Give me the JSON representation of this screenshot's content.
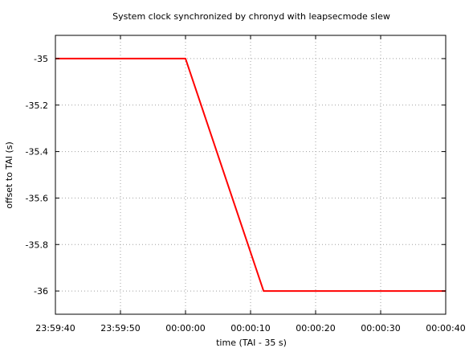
{
  "chart_data": {
    "type": "line",
    "title": "System clock synchronized by chronyd with leapsecmode slew",
    "xlabel": "time (TAI - 35 s)",
    "ylabel": "offset to TAI (s)",
    "xlim": [
      "23:59:40",
      "00:00:40"
    ],
    "ylim": [
      -36.1,
      -34.9
    ],
    "x_ticks": [
      "23:59:40",
      "23:59:50",
      "00:00:00",
      "00:00:10",
      "00:00:20",
      "00:00:30",
      "00:00:40"
    ],
    "y_ticks": [
      "-35",
      "-35.2",
      "-35.4",
      "-35.6",
      "-35.8",
      "-36"
    ],
    "grid": true,
    "legend": "none",
    "series": [
      {
        "color": "#ff0000",
        "points": [
          {
            "x": "23:59:40",
            "y": -35
          },
          {
            "x": "00:00:00",
            "y": -35
          },
          {
            "x": "00:00:12",
            "y": -36
          },
          {
            "x": "00:00:40",
            "y": -36
          }
        ]
      }
    ]
  }
}
